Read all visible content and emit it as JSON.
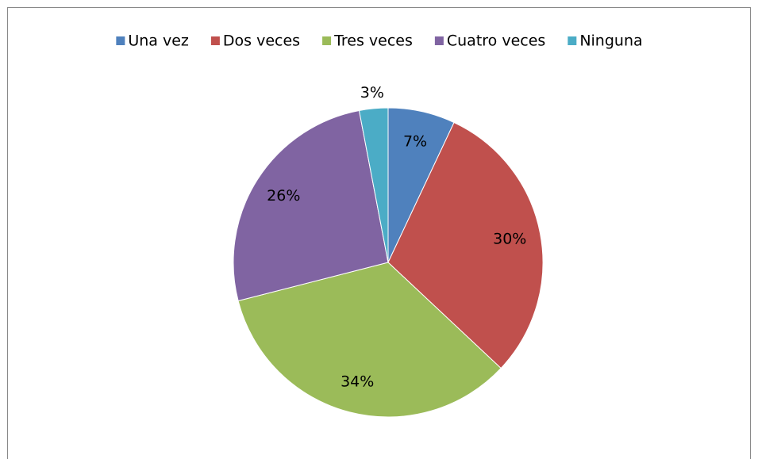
{
  "chart_data": {
    "type": "pie",
    "categories": [
      "Una vez",
      "Dos veces",
      "Tres veces",
      "Cuatro veces",
      "Ninguna"
    ],
    "values": [
      7,
      30,
      34,
      26,
      3
    ],
    "value_labels": [
      "7%",
      "30%",
      "34%",
      "26%",
      "3%"
    ],
    "colors": [
      "#4f81bd",
      "#c0504d",
      "#9bbb59",
      "#8064a2",
      "#4bacc6"
    ],
    "legend": "top"
  }
}
